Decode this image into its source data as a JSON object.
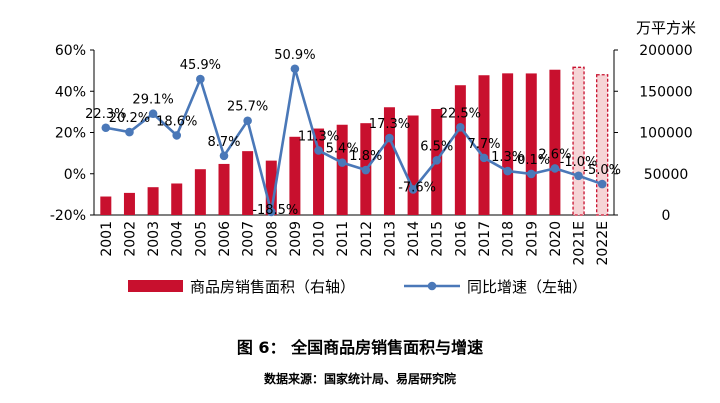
{
  "chart_data": {
    "type": "bar+line",
    "categories": [
      "2001",
      "2002",
      "2003",
      "2004",
      "2005",
      "2006",
      "2007",
      "2008",
      "2009",
      "2010",
      "2011",
      "2012",
      "2013",
      "2014",
      "2015",
      "2016",
      "2017",
      "2018",
      "2019",
      "2020",
      "2021E",
      "2022E"
    ],
    "bars": {
      "name": "商品房销售面积（右轴）",
      "axis": "right",
      "values": [
        22400,
        26800,
        33700,
        38200,
        55500,
        61900,
        77400,
        65900,
        94800,
        104800,
        109400,
        111300,
        130600,
        120600,
        128500,
        157300,
        169400,
        171700,
        171600,
        176100,
        179000,
        170000
      ],
      "forecast_from_index": 20,
      "color": "#c8102e",
      "forecast_color": "#f6d4d6"
    },
    "line": {
      "name": "同比增速（左轴）",
      "axis": "left",
      "values": [
        22.3,
        20.2,
        29.1,
        18.6,
        45.9,
        8.7,
        25.7,
        -18.5,
        50.9,
        11.3,
        5.4,
        1.8,
        17.3,
        -7.6,
        6.5,
        22.5,
        7.7,
        1.3,
        -0.1,
        2.6,
        -1.0,
        -5.0
      ],
      "labels": [
        "22.3%",
        "20.2%",
        "29.1%",
        "18.6%",
        "45.9%",
        "8.7%",
        "25.7%",
        "-18.5%",
        "50.9%",
        "11.3%",
        "5.4%",
        "1.8%",
        "17.3%",
        "-7.6%",
        "6.5%",
        "22.5%",
        "7.7%",
        "1.3%",
        "-0.1%",
        "2.6%",
        "-1.0%",
        "-5.0%"
      ],
      "color": "#4a78b8"
    },
    "left_axis": {
      "min": -20,
      "max": 60,
      "step": 20,
      "ticks": [
        "-20%",
        "0%",
        "20%",
        "40%",
        "60%"
      ]
    },
    "right_axis": {
      "min": 0,
      "max": 200000,
      "step": 50000,
      "ticks": [
        "0",
        "50000",
        "100000",
        "150000",
        "200000"
      ],
      "unit": "万平方米"
    },
    "legend_position": "bottom",
    "grid": false
  },
  "caption": {
    "title": "图 6：  全国商品房销售面积与增速",
    "source": "数据来源：国家统计局、易居研究院"
  }
}
